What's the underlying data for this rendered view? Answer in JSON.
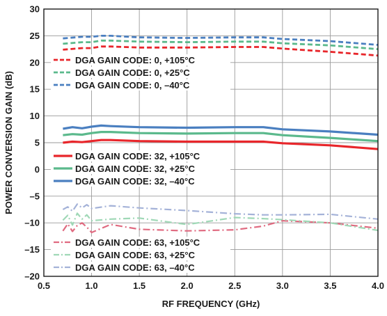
{
  "chart_data": {
    "type": "line",
    "title": "",
    "xlabel": "RF FREQUENCY (GHz)",
    "ylabel": "POWER CONVERSION GAIN (dB)",
    "xlim": [
      0.5,
      4.0
    ],
    "ylim": [
      -20,
      30
    ],
    "xticks": [
      0.5,
      1.0,
      1.5,
      2.0,
      2.5,
      3.0,
      3.5,
      4.0
    ],
    "xtick_labels": [
      "0.5",
      "1.0",
      "1.5",
      "2.0",
      "2.5",
      "3.0",
      "3.5",
      "4.0"
    ],
    "yticks": [
      -20,
      -15,
      -10,
      -5,
      0,
      5,
      10,
      15,
      20,
      25,
      30
    ],
    "ytick_labels": [
      "–20",
      "–15",
      "–10",
      "–5",
      "0",
      "5",
      "10",
      "15",
      "20",
      "25",
      "30"
    ],
    "grid": true,
    "series": [
      {
        "name": "DGA GAIN CODE: 0, +105°C",
        "color": "#e8262b",
        "dash": "dashed",
        "x": [
          0.7,
          0.9,
          1.0,
          1.1,
          1.2,
          1.5,
          2.0,
          2.5,
          2.8,
          3.0,
          3.5,
          4.0
        ],
        "y": [
          22.4,
          22.7,
          22.7,
          23.0,
          23.0,
          22.8,
          22.8,
          22.9,
          22.9,
          22.6,
          22.0,
          21.3
        ]
      },
      {
        "name": "DGA GAIN CODE: 0, +25°C",
        "color": "#5bb98c",
        "dash": "dashed",
        "x": [
          0.7,
          0.9,
          1.0,
          1.1,
          1.2,
          1.5,
          2.0,
          2.5,
          2.8,
          3.0,
          3.5,
          4.0
        ],
        "y": [
          23.5,
          23.8,
          23.8,
          24.1,
          24.1,
          23.9,
          23.8,
          23.9,
          23.9,
          23.6,
          23.2,
          22.5
        ]
      },
      {
        "name": "DGA GAIN CODE: 0, –40°C",
        "color": "#4a7fc0",
        "dash": "dashed",
        "x": [
          0.7,
          0.9,
          1.0,
          1.1,
          1.2,
          1.5,
          2.0,
          2.5,
          2.8,
          3.0,
          3.5,
          4.0
        ],
        "y": [
          24.5,
          24.8,
          24.8,
          25.0,
          25.0,
          24.7,
          24.6,
          24.7,
          24.7,
          24.4,
          24.0,
          23.3
        ]
      },
      {
        "name": "DGA GAIN CODE: 32, +105°C",
        "color": "#e8262b",
        "dash": "solid",
        "x": [
          0.7,
          0.8,
          0.9,
          1.0,
          1.1,
          1.2,
          1.5,
          2.0,
          2.5,
          2.8,
          3.0,
          3.5,
          4.0
        ],
        "y": [
          5.0,
          5.2,
          5.1,
          5.3,
          5.5,
          5.5,
          5.3,
          5.2,
          5.2,
          5.2,
          4.9,
          4.5,
          3.8
        ]
      },
      {
        "name": "DGA GAIN CODE: 32, +25°C",
        "color": "#5bb98c",
        "dash": "solid",
        "x": [
          0.7,
          0.8,
          0.9,
          1.0,
          1.1,
          1.2,
          1.5,
          2.0,
          2.5,
          2.8,
          3.0,
          3.5,
          4.0
        ],
        "y": [
          6.4,
          6.6,
          6.5,
          6.8,
          7.0,
          7.0,
          6.8,
          6.7,
          6.8,
          6.8,
          6.4,
          5.9,
          5.3
        ]
      },
      {
        "name": "DGA GAIN CODE: 32, –40°C",
        "color": "#4a7fc0",
        "dash": "solid",
        "x": [
          0.7,
          0.8,
          0.9,
          1.0,
          1.1,
          1.2,
          1.5,
          2.0,
          2.5,
          2.8,
          3.0,
          3.5,
          4.0
        ],
        "y": [
          7.6,
          7.9,
          7.7,
          8.0,
          8.2,
          8.1,
          7.9,
          7.8,
          7.9,
          7.9,
          7.5,
          7.1,
          6.5
        ]
      },
      {
        "name": "DGA GAIN CODE: 63, +105°C",
        "color": "#e06a80",
        "dash": "dashdot",
        "x": [
          0.7,
          0.75,
          0.8,
          0.85,
          0.9,
          0.95,
          1.0,
          1.2,
          1.5,
          2.0,
          2.5,
          2.8,
          3.0,
          3.5,
          4.0
        ],
        "y": [
          -11.5,
          -10.2,
          -11.6,
          -10.5,
          -10.0,
          -10.8,
          -11.8,
          -10.3,
          -11.2,
          -11.5,
          -11.3,
          -10.6,
          -9.6,
          -10.0,
          -11.0
        ]
      },
      {
        "name": "DGA GAIN CODE: 63, +25°C",
        "color": "#9fd8b6",
        "dash": "dashdot",
        "x": [
          0.7,
          0.75,
          0.8,
          0.85,
          0.9,
          0.95,
          1.0,
          1.2,
          1.5,
          2.0,
          2.5,
          2.8,
          3.0,
          3.5,
          4.0
        ],
        "y": [
          -9.5,
          -8.6,
          -10.4,
          -8.2,
          -9.3,
          -8.5,
          -9.6,
          -9.3,
          -9.1,
          -10.3,
          -9.0,
          -9.2,
          -9.4,
          -10.0,
          -11.4
        ]
      },
      {
        "name": "DGA GAIN CODE: 63, –40°C",
        "color": "#a4b2d8",
        "dash": "dashdot",
        "x": [
          0.7,
          0.75,
          0.8,
          0.85,
          0.9,
          0.95,
          1.0,
          1.2,
          1.5,
          2.0,
          2.5,
          2.8,
          3.0,
          3.5,
          4.0
        ],
        "y": [
          -7.5,
          -7.0,
          -7.8,
          -6.5,
          -7.2,
          -6.6,
          -7.3,
          -6.8,
          -7.2,
          -7.7,
          -8.3,
          -8.5,
          -8.5,
          -8.4,
          -9.3
        ]
      }
    ]
  }
}
